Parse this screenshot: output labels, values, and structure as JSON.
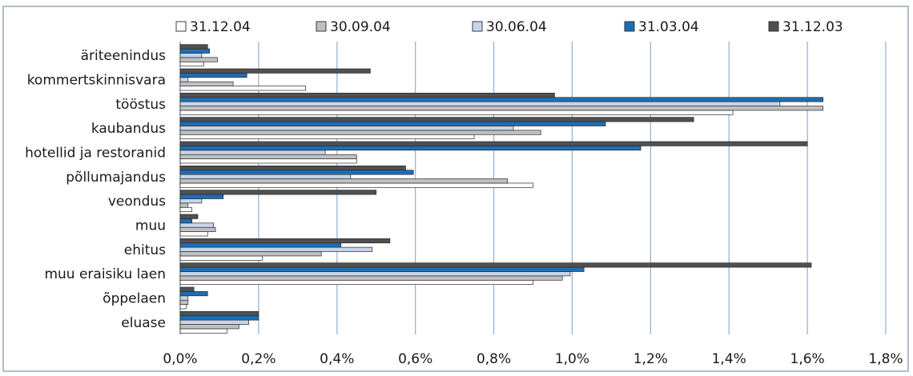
{
  "chart_data": {
    "type": "bar",
    "orientation": "horizontal",
    "title": "",
    "xlabel": "",
    "ylabel": "",
    "xlim": [
      0,
      1.8
    ],
    "x_ticks": [
      "0,0%",
      "0,2%",
      "0,4%",
      "0,6%",
      "0,8%",
      "1,0%",
      "1,2%",
      "1,4%",
      "1,6%",
      "1,8%"
    ],
    "grid": "vertical",
    "legend_position": "top",
    "categories": [
      "äriteenindus",
      "kommertskinnisvara",
      "tööstus",
      "kaubandus",
      "hotellid ja restoranid",
      "põllumajandus",
      "veondus",
      "muu",
      "ehitus",
      "muu eraisiku laen",
      "õppelaen",
      "eluase"
    ],
    "series": [
      {
        "name": "31.12.04",
        "color": "#ffffff",
        "values": [
          0.06,
          0.32,
          1.41,
          0.75,
          0.45,
          0.9,
          0.03,
          0.07,
          0.21,
          0.9,
          0.015,
          0.12
        ]
      },
      {
        "name": "30.09.04",
        "color": "#c0c0c0",
        "values": [
          0.095,
          0.135,
          1.64,
          0.92,
          0.45,
          0.835,
          0.02,
          0.09,
          0.36,
          0.975,
          0.02,
          0.15
        ]
      },
      {
        "name": "30.06.04",
        "color": "#c6d5ea",
        "values": [
          0.055,
          0.02,
          1.53,
          0.85,
          0.37,
          0.435,
          0.055,
          0.085,
          0.49,
          0.995,
          0.02,
          0.175
        ]
      },
      {
        "name": "31.03.04",
        "color": "#1f6db5",
        "values": [
          0.075,
          0.17,
          1.64,
          1.085,
          1.175,
          0.595,
          0.11,
          0.03,
          0.41,
          1.03,
          0.07,
          0.2
        ]
      },
      {
        "name": "31.12.03",
        "color": "#505050",
        "values": [
          0.07,
          0.485,
          0.955,
          1.31,
          1.6,
          0.575,
          0.5,
          0.045,
          0.535,
          1.61,
          0.035,
          0.2
        ]
      }
    ]
  }
}
